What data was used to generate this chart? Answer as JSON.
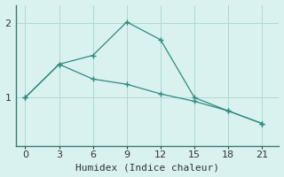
{
  "line1_x": [
    0,
    3,
    6,
    9,
    12,
    15,
    18,
    21
  ],
  "line1_y": [
    1.0,
    1.45,
    1.57,
    2.02,
    1.78,
    1.0,
    0.82,
    0.65
  ],
  "line2_x": [
    0,
    3,
    6,
    9,
    12,
    15,
    18,
    21
  ],
  "line2_y": [
    1.0,
    1.45,
    1.25,
    1.18,
    1.05,
    0.95,
    0.82,
    0.65
  ],
  "line_color": "#2e8b7a",
  "bg_color": "#d9f2f0",
  "grid_color": "#aed8d4",
  "xlabel": "Humidex (Indice chaleur)",
  "xlabel_fontsize": 8,
  "tick_fontsize": 8,
  "yticks": [
    1,
    2
  ],
  "xticks": [
    0,
    3,
    6,
    9,
    12,
    15,
    18,
    21
  ],
  "xlim": [
    -0.8,
    22.5
  ],
  "ylim": [
    0.35,
    2.25
  ]
}
